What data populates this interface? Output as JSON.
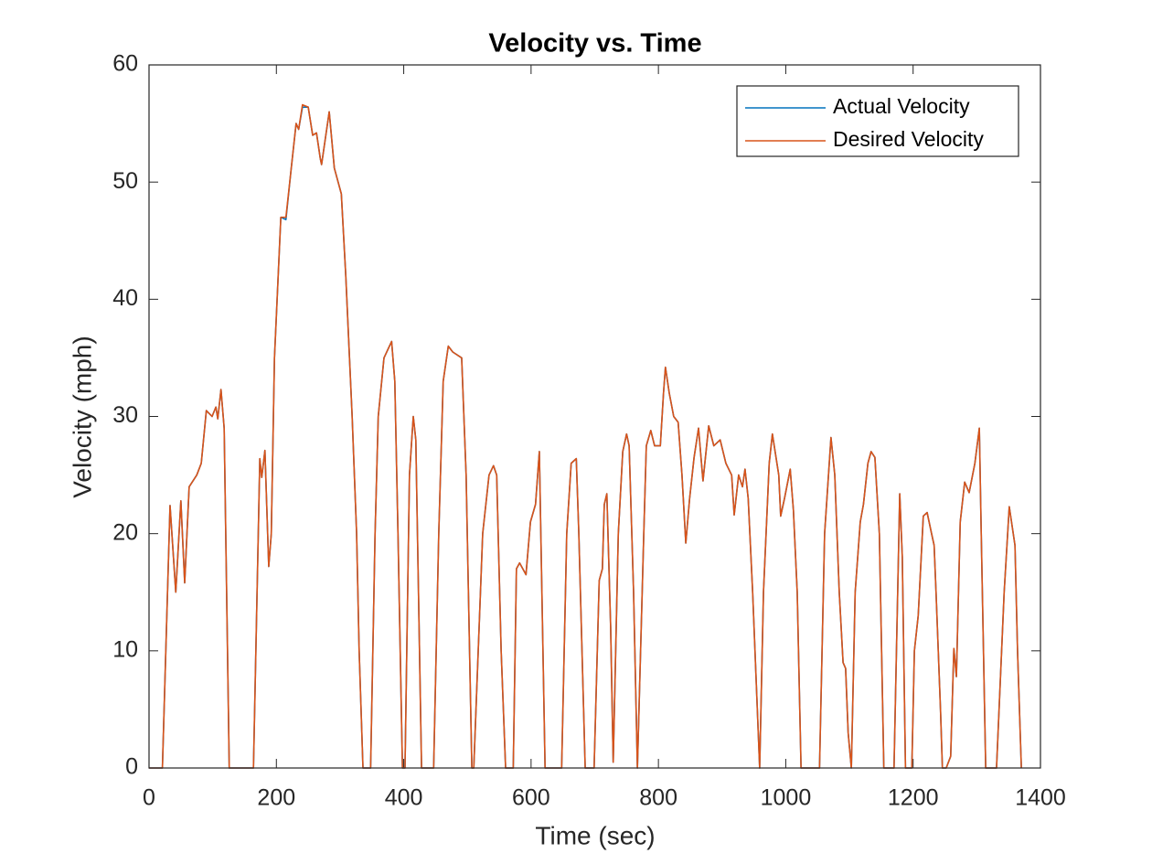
{
  "chart_data": {
    "type": "line",
    "title": "Velocity vs. Time",
    "xlabel": "Time (sec)",
    "ylabel": "Velocity (mph)",
    "xlim": [
      0,
      1400
    ],
    "ylim": [
      0,
      60
    ],
    "xticks": [
      0,
      200,
      400,
      600,
      800,
      1000,
      1200,
      1400
    ],
    "yticks": [
      0,
      10,
      20,
      30,
      40,
      50,
      60
    ],
    "legend": "upper right",
    "grid": false,
    "x": [
      0,
      21,
      33,
      42,
      50,
      56,
      63,
      75,
      82,
      90,
      99,
      105,
      108,
      113,
      118,
      126,
      164,
      174,
      177,
      182,
      188,
      192,
      197,
      207,
      215,
      223,
      231,
      235,
      241,
      250,
      257,
      263,
      269,
      271,
      283,
      291,
      299,
      302,
      309,
      319,
      326,
      330,
      336,
      348,
      355,
      360,
      369,
      381,
      386,
      391,
      398,
      402,
      409,
      415,
      419,
      428,
      447,
      455,
      462,
      470,
      477,
      491,
      498,
      507,
      510,
      524,
      534,
      541,
      546,
      553,
      560,
      572,
      577,
      582,
      592,
      599,
      607,
      613,
      622,
      648,
      656,
      663,
      671,
      675,
      685,
      699,
      707,
      712,
      715,
      719,
      725,
      729,
      737,
      744,
      750,
      754,
      761,
      767,
      777,
      781,
      788,
      794,
      803,
      808,
      811,
      817,
      824,
      831,
      837,
      843,
      849,
      856,
      863,
      870,
      879,
      887,
      897,
      906,
      915,
      919,
      926,
      932,
      936,
      941,
      948,
      959,
      965,
      974,
      979,
      989,
      992,
      998,
      1007,
      1012,
      1018,
      1024,
      1053,
      1061,
      1071,
      1077,
      1084,
      1090,
      1094,
      1098,
      1103,
      1109,
      1117,
      1122,
      1129,
      1134,
      1140,
      1147,
      1154,
      1170,
      1179,
      1183,
      1188,
      1198,
      1202,
      1208,
      1216,
      1222,
      1229,
      1233,
      1236,
      1243,
      1246,
      1252,
      1259,
      1264,
      1268,
      1274,
      1281,
      1288,
      1297,
      1304,
      1307,
      1314,
      1331,
      1343,
      1351,
      1360,
      1364,
      1370
    ],
    "series": [
      {
        "name": "Actual Velocity",
        "color": "#0072bd",
        "values": [
          0,
          0,
          22.4,
          15,
          22.8,
          15.8,
          24,
          25,
          26,
          30.5,
          30,
          30.8,
          29.8,
          32.3,
          29,
          0,
          0,
          26.4,
          24.8,
          27.1,
          17.2,
          20,
          35,
          47,
          46.8,
          51,
          55,
          54.5,
          56.4,
          56.4,
          54,
          54.2,
          52,
          51.5,
          56,
          51.2,
          49.6,
          49,
          42,
          30,
          20,
          10,
          0,
          0,
          20,
          30,
          35,
          36.4,
          33,
          20,
          0,
          0,
          25,
          30,
          28,
          0,
          0,
          20,
          33,
          36,
          35.5,
          35,
          25,
          0,
          0,
          20,
          25,
          25.8,
          25,
          10,
          0,
          0,
          17,
          17.5,
          16.5,
          21,
          22.5,
          27,
          0,
          0,
          20,
          26,
          26.4,
          20,
          0,
          0,
          16,
          17,
          22.5,
          23.4,
          12,
          0.5,
          20,
          27,
          28.5,
          27.5,
          15,
          0,
          20,
          27.5,
          28.8,
          27.5,
          27.5,
          32,
          34.2,
          32,
          30,
          29.5,
          25,
          19.2,
          23,
          26.5,
          29,
          24.5,
          29.2,
          27.5,
          28,
          26,
          25,
          21.6,
          25,
          24,
          25.5,
          23,
          15,
          0,
          15,
          26,
          28.5,
          25,
          21.5,
          23,
          25.5,
          22,
          15,
          0,
          0,
          20,
          28.2,
          25,
          15,
          9,
          8.5,
          3,
          0,
          15,
          21,
          22.5,
          26,
          27,
          26.5,
          20,
          0,
          0,
          23.4,
          18,
          0,
          0,
          10,
          13,
          21.5,
          21.8,
          20,
          19,
          15,
          5,
          0,
          0,
          1,
          10.2,
          7.8,
          21,
          24.4,
          23.5,
          26,
          29,
          20,
          0,
          0,
          15,
          22.3,
          19,
          10,
          0
        ]
      },
      {
        "name": "Desired Velocity",
        "color": "#d95319",
        "values": [
          0,
          0,
          22.4,
          15,
          22.8,
          15.8,
          24,
          25,
          26,
          30.5,
          30,
          30.8,
          29.8,
          32.3,
          29,
          0,
          0,
          26.4,
          24.8,
          27.1,
          17.2,
          20,
          35,
          47,
          47,
          51,
          55,
          54.5,
          56.6,
          56.4,
          54,
          54.2,
          52,
          51.5,
          56,
          51.2,
          49.6,
          49,
          42,
          30,
          20,
          10,
          0,
          0,
          20,
          30,
          35,
          36.4,
          33,
          20,
          0,
          0,
          25,
          30,
          28,
          0,
          0,
          20,
          33,
          36,
          35.5,
          35,
          25,
          0,
          0,
          20,
          25,
          25.8,
          25,
          10,
          0,
          0,
          17,
          17.5,
          16.5,
          21,
          22.5,
          27,
          0,
          0,
          20,
          26,
          26.4,
          20,
          0,
          0,
          16,
          17,
          22.5,
          23.4,
          12,
          0.5,
          20,
          27,
          28.5,
          27.5,
          15,
          0,
          20,
          27.5,
          28.8,
          27.5,
          27.5,
          32,
          34.2,
          32,
          30,
          29.5,
          25,
          19.2,
          23,
          26.5,
          29,
          24.5,
          29.2,
          27.5,
          28,
          26,
          25,
          21.6,
          25,
          24,
          25.5,
          23,
          15,
          0,
          15,
          26,
          28.5,
          25,
          21.5,
          23,
          25.5,
          22,
          15,
          0,
          0,
          20,
          28.2,
          25,
          15,
          9,
          8.5,
          3,
          0,
          15,
          21,
          22.5,
          26,
          27,
          26.5,
          20,
          0,
          0,
          23.4,
          18,
          0,
          0,
          10,
          13,
          21.5,
          21.8,
          20,
          19,
          15,
          5,
          0,
          0,
          1,
          10.2,
          7.8,
          21,
          24.4,
          23.5,
          26,
          29,
          20,
          0,
          0,
          15,
          22.3,
          19,
          10,
          0
        ]
      }
    ]
  }
}
